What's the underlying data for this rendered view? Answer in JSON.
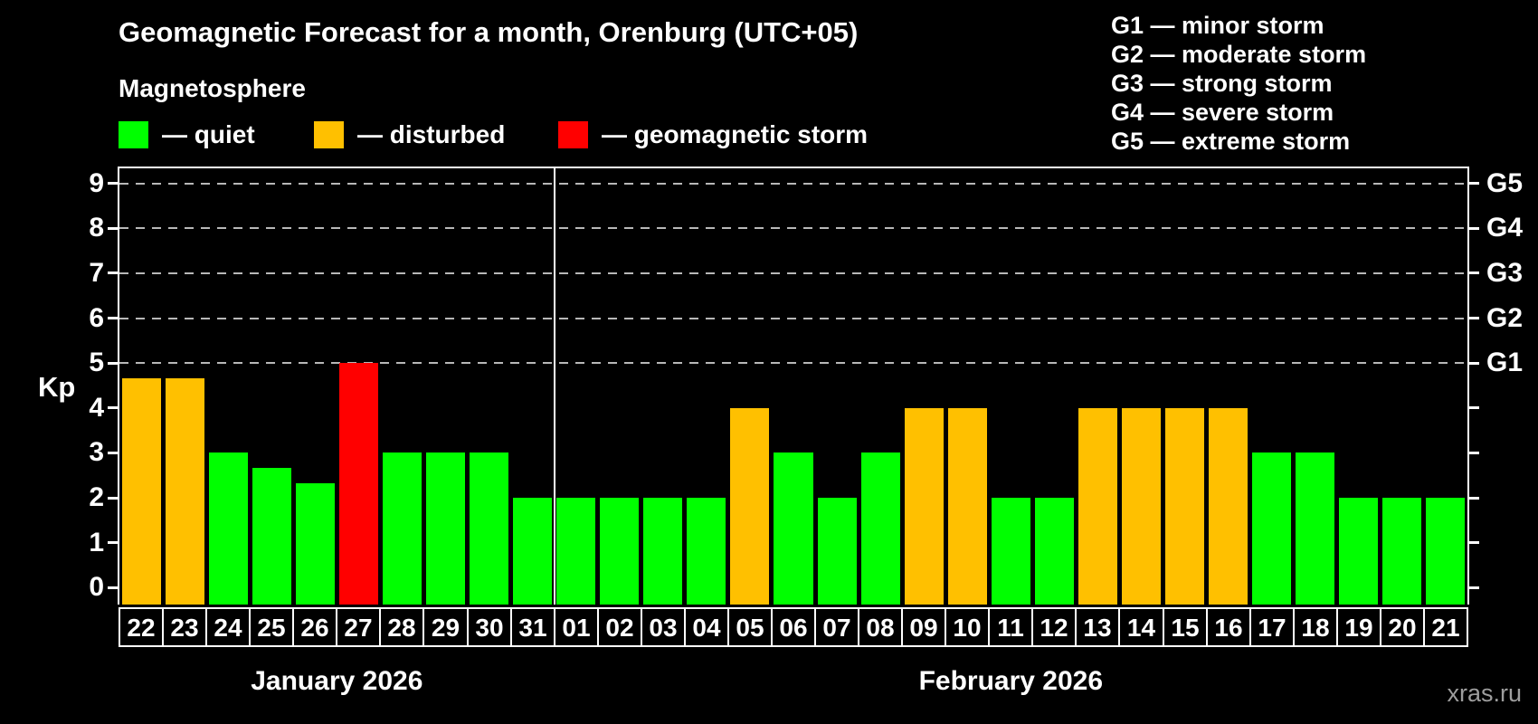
{
  "header": {
    "title": "Geomagnetic Forecast for a month, Orenburg (UTC+05)",
    "subtitle": "Magnetosphere"
  },
  "legend": {
    "items": [
      {
        "status": "quiet",
        "label": "— quiet",
        "color": "#00ff00"
      },
      {
        "status": "disturbed",
        "label": "— disturbed",
        "color": "#ffc000"
      },
      {
        "status": "storm",
        "label": "— geomagnetic storm",
        "color": "#ff0000"
      }
    ]
  },
  "g_legend": {
    "lines": [
      "G1 — minor storm",
      "G2 — moderate storm",
      "G3 — strong storm",
      "G4 — severe storm",
      "G5 — extreme storm"
    ]
  },
  "watermark": "xras.ru",
  "colors": {
    "background": "#000000",
    "axis": "#ffffff",
    "grid": "#b8b8b8",
    "quiet": "#00ff00",
    "disturbed": "#ffc000",
    "storm": "#ff0000",
    "watermark": "#9d9d9d"
  },
  "chart_data": {
    "type": "bar",
    "title": "Geomagnetic Forecast for a month, Orenburg (UTC+05)",
    "ylabel": "Kp",
    "xlabel": "",
    "ylim": [
      -0.375,
      9.375
    ],
    "yticks": [
      0,
      1,
      2,
      3,
      4,
      5,
      6,
      7,
      8,
      9
    ],
    "gridlines_at": [
      5,
      6,
      7,
      8,
      9
    ],
    "grid_style": "dashed",
    "legend_position": "top",
    "right_axis_labels": [
      {
        "kp": 5,
        "label": "G1"
      },
      {
        "kp": 6,
        "label": "G2"
      },
      {
        "kp": 7,
        "label": "G3"
      },
      {
        "kp": 8,
        "label": "G4"
      },
      {
        "kp": 9,
        "label": "G5"
      }
    ],
    "months": [
      {
        "label": "January 2026",
        "days": 10
      },
      {
        "label": "February 2026",
        "days": 21
      }
    ],
    "categories": [
      "22",
      "23",
      "24",
      "25",
      "26",
      "27",
      "28",
      "29",
      "30",
      "31",
      "01",
      "02",
      "03",
      "04",
      "05",
      "06",
      "07",
      "08",
      "09",
      "10",
      "11",
      "12",
      "13",
      "14",
      "15",
      "16",
      "17",
      "18",
      "19",
      "20",
      "21"
    ],
    "values": [
      4.67,
      4.67,
      3,
      2.67,
      2.33,
      5,
      3,
      3,
      3,
      2,
      2,
      2,
      2,
      2,
      4,
      3,
      2,
      3,
      4,
      4,
      2,
      2,
      4,
      4,
      4,
      4,
      3,
      3,
      2,
      2,
      2
    ],
    "statuses": [
      "disturbed",
      "disturbed",
      "quiet",
      "quiet",
      "quiet",
      "storm",
      "quiet",
      "quiet",
      "quiet",
      "quiet",
      "quiet",
      "quiet",
      "quiet",
      "quiet",
      "disturbed",
      "quiet",
      "quiet",
      "quiet",
      "disturbed",
      "disturbed",
      "quiet",
      "quiet",
      "disturbed",
      "disturbed",
      "disturbed",
      "disturbed",
      "quiet",
      "quiet",
      "quiet",
      "quiet",
      "quiet"
    ]
  }
}
